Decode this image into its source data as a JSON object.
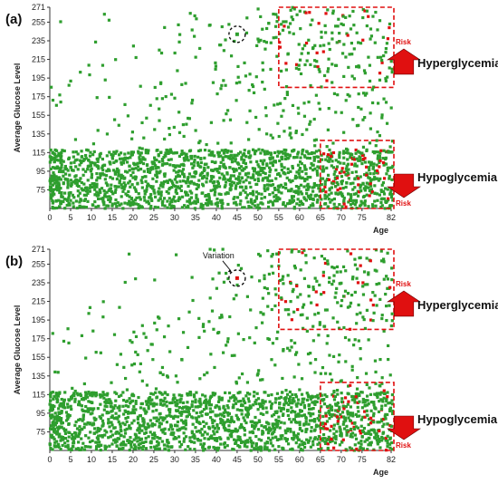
{
  "chart_data": [
    {
      "panel_label": "(a)",
      "type": "scatter",
      "xlabel": "Age",
      "ylabel": "Average Glucose Level",
      "x_ticks": [
        "0",
        "5",
        "10",
        "15",
        "20",
        "25",
        "30",
        "35",
        "40",
        "45",
        "50",
        "55",
        "60",
        "65",
        "70",
        "75",
        "82"
      ],
      "y_ticks": [
        "75",
        "95",
        "115",
        "135",
        "155",
        "175",
        "195",
        "215",
        "235",
        "255",
        "271"
      ],
      "xlim": [
        0,
        82
      ],
      "ylim": [
        55,
        271
      ],
      "colors": {
        "normal": "#2e9e2e",
        "risk": "#e01010",
        "region": "#e01010"
      },
      "regions": [
        {
          "name": "Hyperglycemia",
          "x_range": [
            55,
            82
          ],
          "y_range": [
            185,
            271
          ],
          "risk_label": "Risk",
          "arrow": "up"
        },
        {
          "name": "Hypoglycemia",
          "x_range": [
            65,
            82
          ],
          "y_range": [
            55,
            128
          ],
          "risk_label": "Risk",
          "arrow": "down"
        }
      ],
      "annotation": {
        "text": "",
        "x": 45,
        "y": 242
      },
      "highlight_point": {
        "x": 45,
        "y": 242,
        "color": "normal"
      },
      "density": {
        "dense_band_y": [
          55,
          118
        ],
        "sparse_band_y": [
          118,
          200
        ],
        "sparse_top_y": [
          200,
          271
        ]
      }
    },
    {
      "panel_label": "(b)",
      "type": "scatter",
      "xlabel": "Age",
      "ylabel": "Average Glucose Level",
      "x_ticks": [
        "0",
        "5",
        "10",
        "15",
        "20",
        "25",
        "30",
        "35",
        "40",
        "45",
        "50",
        "55",
        "60",
        "65",
        "70",
        "75",
        "82"
      ],
      "y_ticks": [
        "75",
        "95",
        "115",
        "135",
        "155",
        "175",
        "195",
        "215",
        "235",
        "255",
        "271"
      ],
      "xlim": [
        0,
        82
      ],
      "ylim": [
        55,
        271
      ],
      "colors": {
        "normal": "#2e9e2e",
        "risk": "#e01010",
        "region": "#e01010"
      },
      "regions": [
        {
          "name": "Hyperglycemia",
          "x_range": [
            55,
            82
          ],
          "y_range": [
            185,
            271
          ],
          "risk_label": "Risk",
          "arrow": "up"
        },
        {
          "name": "Hypoglycemia",
          "x_range": [
            65,
            82
          ],
          "y_range": [
            55,
            128
          ],
          "risk_label": "Risk",
          "arrow": "down"
        }
      ],
      "annotation": {
        "text": "Variation",
        "x": 45,
        "y": 240
      },
      "highlight_point": {
        "x": 45,
        "y": 240,
        "color": "risk"
      },
      "density": {
        "dense_band_y": [
          55,
          118
        ],
        "sparse_band_y": [
          118,
          200
        ],
        "sparse_top_y": [
          200,
          271
        ]
      }
    }
  ]
}
